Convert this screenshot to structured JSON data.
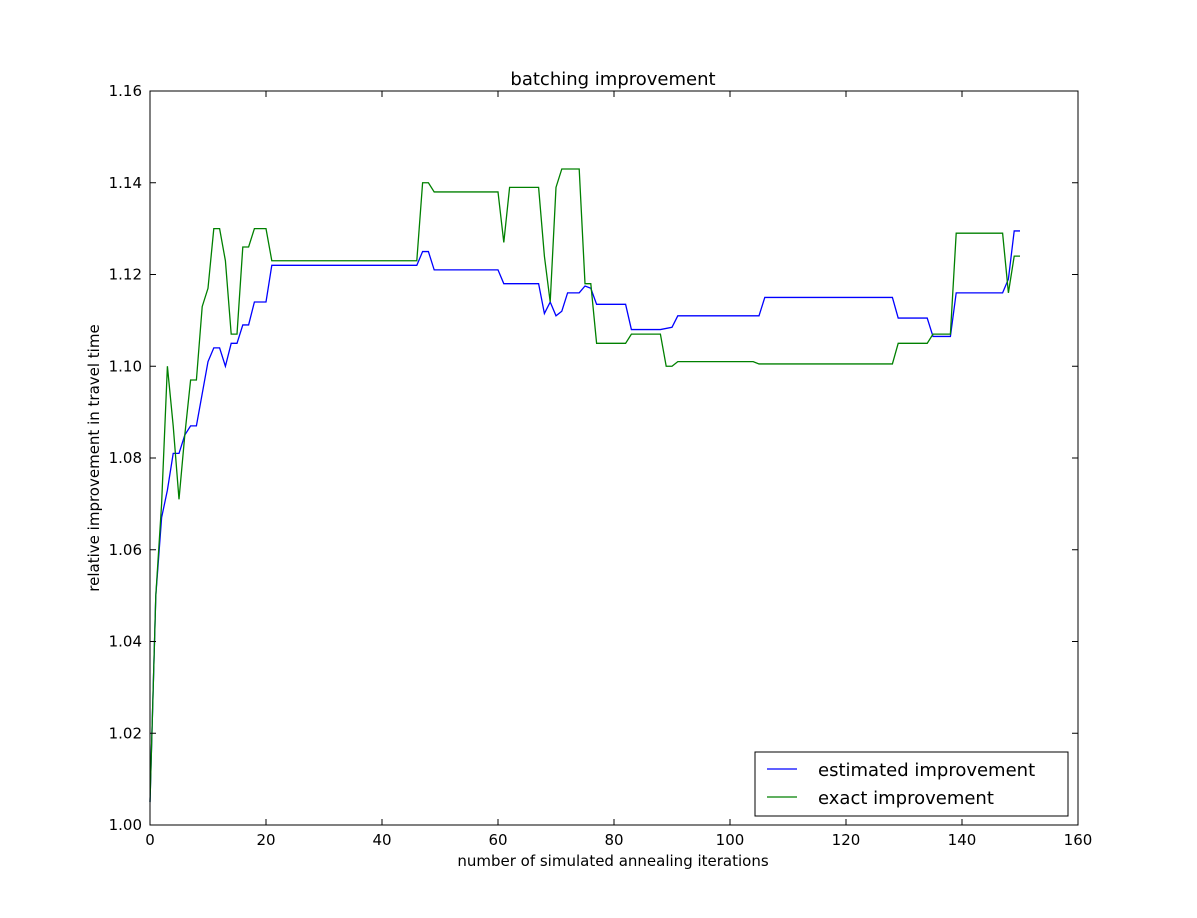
{
  "chart_data": {
    "type": "line",
    "title": "batching improvement",
    "xlabel": "number of simulated annealing iterations",
    "ylabel": "relative improvement in travel time",
    "xlim": [
      0,
      160
    ],
    "ylim": [
      1.0,
      1.16
    ],
    "xticks": [
      0,
      20,
      40,
      60,
      80,
      100,
      120,
      140,
      160
    ],
    "yticks": [
      1.0,
      1.02,
      1.04,
      1.06,
      1.08,
      1.1,
      1.12,
      1.14,
      1.16
    ],
    "xtick_labels": [
      "0",
      "20",
      "40",
      "60",
      "80",
      "100",
      "120",
      "140",
      "160"
    ],
    "ytick_labels": [
      "1.00",
      "1.02",
      "1.04",
      "1.06",
      "1.08",
      "1.10",
      "1.12",
      "1.14",
      "1.16"
    ],
    "grid": false,
    "legend_position": "bottom-right",
    "series": [
      {
        "name": "estimated improvement",
        "color": "#0000ff",
        "points": [
          [
            0,
            1.005
          ],
          [
            1,
            1.05
          ],
          [
            2,
            1.067
          ],
          [
            3,
            1.073
          ],
          [
            4,
            1.081
          ],
          [
            5,
            1.081
          ],
          [
            6,
            1.085
          ],
          [
            7,
            1.087
          ],
          [
            8,
            1.087
          ],
          [
            9,
            1.094
          ],
          [
            10,
            1.101
          ],
          [
            11,
            1.104
          ],
          [
            12,
            1.104
          ],
          [
            13,
            1.1
          ],
          [
            14,
            1.105
          ],
          [
            15,
            1.105
          ],
          [
            16,
            1.109
          ],
          [
            17,
            1.109
          ],
          [
            18,
            1.114
          ],
          [
            19,
            1.114
          ],
          [
            20,
            1.114
          ],
          [
            21,
            1.122
          ],
          [
            46,
            1.122
          ],
          [
            47,
            1.125
          ],
          [
            48,
            1.125
          ],
          [
            49,
            1.121
          ],
          [
            60,
            1.121
          ],
          [
            61,
            1.118
          ],
          [
            62,
            1.118
          ],
          [
            67,
            1.118
          ],
          [
            68,
            1.1115
          ],
          [
            69,
            1.114
          ],
          [
            70,
            1.111
          ],
          [
            71,
            1.112
          ],
          [
            72,
            1.116
          ],
          [
            74,
            1.116
          ],
          [
            75,
            1.1175
          ],
          [
            76,
            1.117
          ],
          [
            77,
            1.1135
          ],
          [
            82,
            1.1135
          ],
          [
            83,
            1.108
          ],
          [
            88,
            1.108
          ],
          [
            90,
            1.1085
          ],
          [
            91,
            1.111
          ],
          [
            105,
            1.111
          ],
          [
            106,
            1.115
          ],
          [
            128,
            1.115
          ],
          [
            129,
            1.1105
          ],
          [
            134,
            1.1105
          ],
          [
            135,
            1.1065
          ],
          [
            138,
            1.1065
          ],
          [
            139,
            1.116
          ],
          [
            147,
            1.116
          ],
          [
            148,
            1.119
          ],
          [
            149,
            1.1295
          ],
          [
            150,
            1.1295
          ]
        ]
      },
      {
        "name": "exact improvement",
        "color": "#008000",
        "points": [
          [
            0,
            1.005
          ],
          [
            1,
            1.05
          ],
          [
            2,
            1.07
          ],
          [
            3,
            1.1
          ],
          [
            4,
            1.087
          ],
          [
            5,
            1.071
          ],
          [
            6,
            1.085
          ],
          [
            7,
            1.097
          ],
          [
            8,
            1.097
          ],
          [
            9,
            1.113
          ],
          [
            10,
            1.117
          ],
          [
            11,
            1.13
          ],
          [
            12,
            1.13
          ],
          [
            13,
            1.123
          ],
          [
            14,
            1.107
          ],
          [
            15,
            1.107
          ],
          [
            16,
            1.126
          ],
          [
            17,
            1.126
          ],
          [
            18,
            1.13
          ],
          [
            19,
            1.13
          ],
          [
            20,
            1.13
          ],
          [
            21,
            1.123
          ],
          [
            46,
            1.123
          ],
          [
            47,
            1.14
          ],
          [
            48,
            1.14
          ],
          [
            49,
            1.138
          ],
          [
            60,
            1.138
          ],
          [
            61,
            1.127
          ],
          [
            62,
            1.139
          ],
          [
            67,
            1.139
          ],
          [
            68,
            1.124
          ],
          [
            69,
            1.114
          ],
          [
            70,
            1.139
          ],
          [
            71,
            1.143
          ],
          [
            72,
            1.143
          ],
          [
            74,
            1.143
          ],
          [
            75,
            1.118
          ],
          [
            76,
            1.118
          ],
          [
            77,
            1.105
          ],
          [
            82,
            1.105
          ],
          [
            83,
            1.107
          ],
          [
            88,
            1.107
          ],
          [
            89,
            1.1
          ],
          [
            90,
            1.1
          ],
          [
            91,
            1.101
          ],
          [
            104,
            1.101
          ],
          [
            105,
            1.1005
          ],
          [
            128,
            1.1005
          ],
          [
            129,
            1.105
          ],
          [
            134,
            1.105
          ],
          [
            135,
            1.107
          ],
          [
            138,
            1.107
          ],
          [
            139,
            1.129
          ],
          [
            147,
            1.129
          ],
          [
            148,
            1.116
          ],
          [
            149,
            1.124
          ],
          [
            150,
            1.124
          ]
        ]
      }
    ]
  }
}
